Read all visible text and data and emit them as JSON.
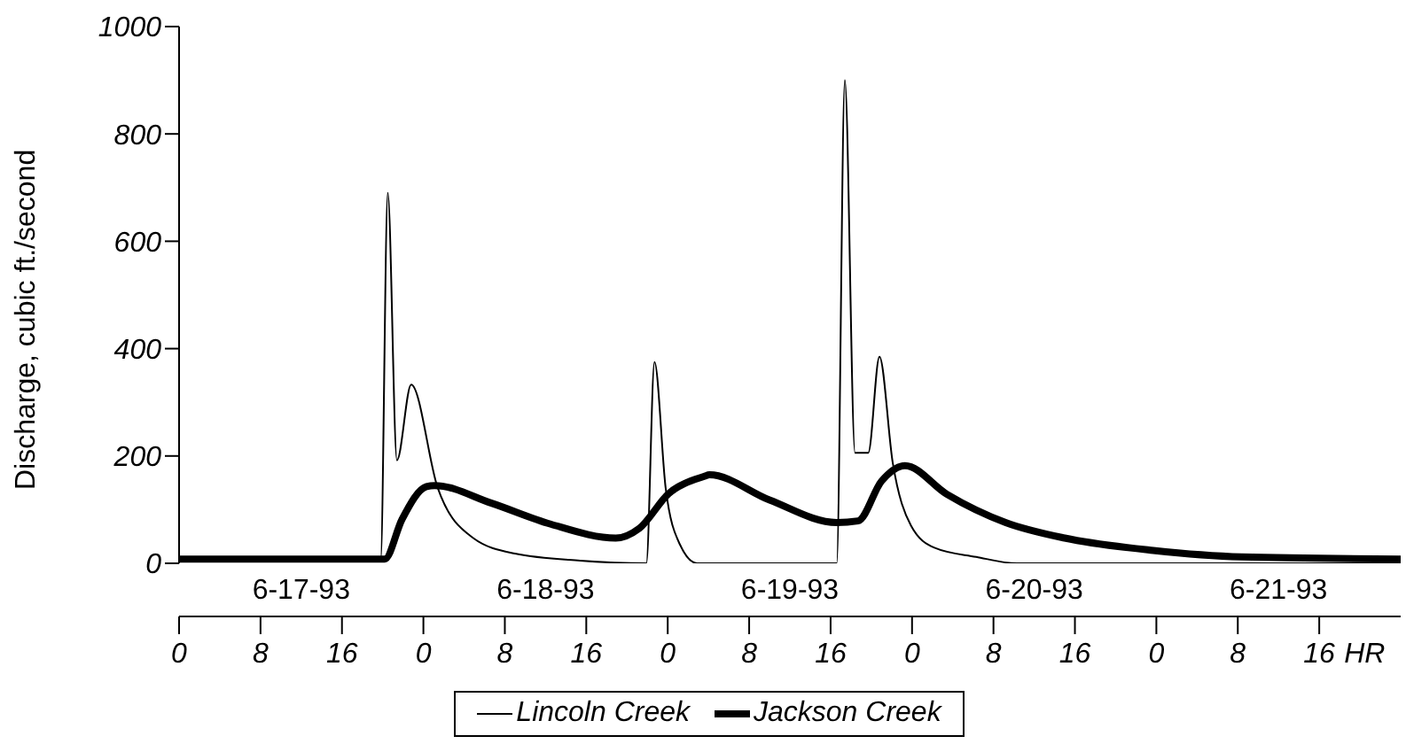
{
  "chart_data": {
    "type": "line",
    "ylabel": "Discharge, cubic ft./second",
    "xlabel": "HR",
    "xlim": [
      "--06-17T00:00",
      "--06-22T00:00"
    ],
    "xticks": [
      {
        "value": "--06-17T00:00",
        "label": "0"
      },
      {
        "value": "--06-17T08:00",
        "label": "8"
      },
      {
        "value": "--06-17T16:00",
        "label": "16"
      },
      {
        "value": "--06-18T00:00",
        "label": "0"
      },
      {
        "value": "--06-18T08:00",
        "label": "8"
      },
      {
        "value": "--06-18T16:00",
        "label": "16"
      },
      {
        "value": "--06-19T00:00",
        "label": "0"
      },
      {
        "value": "--06-19T08:00",
        "label": "8"
      },
      {
        "value": "--06-19T16:00",
        "label": "16"
      },
      {
        "value": "--06-20T00:00",
        "label": "0"
      },
      {
        "value": "--06-20T08:00",
        "label": "8"
      },
      {
        "value": "--06-20T16:00",
        "label": "16"
      },
      {
        "value": "--06-21T00:00",
        "label": "0"
      },
      {
        "value": "--06-21T08:00",
        "label": "8"
      },
      {
        "value": "--06-21T16:00",
        "label": "16"
      }
    ],
    "ylim": [
      0,
      1000
    ],
    "yticks": [
      0,
      200,
      400,
      600,
      800,
      1000
    ],
    "annotations": [
      "6-17-93",
      "6-18-93",
      "6-19-93",
      "6-20-93",
      "6-21-93"
    ],
    "legend": "bottom",
    "marker": "none",
    "line_style": "solid",
    "series": [
      {
        "name": "Lincoln Creek",
        "color": "#000000",
        "x": [
          "--06-17T00:00",
          "--06-17T10:00",
          "--06-17T19:48",
          "--06-17T20:30",
          "--06-17T21:24",
          "--06-17T22:48",
          "--06-18T01:24",
          "--06-18T04:54",
          "--06-18T09:00",
          "--06-18T15:24",
          "--06-18T21:54",
          "--06-18T22:42",
          "--06-18T23:48",
          "--06-19T01:12",
          "--06-19T02:54",
          "--06-19T10:00",
          "--06-19T16:36",
          "--06-19T17:24",
          "--06-19T18:24",
          "--06-19T19:42",
          "--06-19T20:48",
          "--06-19T22:06",
          "--06-19T23:54",
          "--06-20T02:12",
          "--06-20T06:18",
          "--06-20T10:18",
          "--06-21T04:00",
          "--06-22T00:00"
        ],
        "values": [
          5,
          5,
          5,
          690,
          192,
          333,
          141,
          47,
          18,
          5,
          0,
          375,
          140,
          35,
          0,
          0,
          0,
          900,
          206,
          206,
          385,
          188,
          70,
          29,
          12,
          0,
          0,
          0
        ]
      },
      {
        "name": "Jackson Creek",
        "color": "#000000",
        "x": [
          "--06-17T00:00",
          "--06-17T10:00",
          "--06-17T20:12",
          "--06-17T21:54",
          "--06-18T00:18",
          "--06-18T01:06",
          "--06-18T06:42",
          "--06-18T12:30",
          "--06-18T18:54",
          "--06-18T21:12",
          "--06-19T00:06",
          "--06-19T03:36",
          "--06-19T04:06",
          "--06-19T10:00",
          "--06-19T16:36",
          "--06-19T18:42",
          "--06-19T21:00",
          "--06-19T23:18",
          "--06-20T03:24",
          "--06-20T09:12",
          "--06-20T15:00",
          "--06-20T23:42",
          "--06-21T08:24",
          "--06-22T00:00"
        ],
        "values": [
          8,
          8,
          8,
          82,
          143,
          145,
          112,
          73,
          47,
          65,
          130,
          162,
          165,
          118,
          76,
          79,
          153,
          182,
          129,
          76,
          47,
          24,
          12,
          8
        ]
      }
    ]
  }
}
